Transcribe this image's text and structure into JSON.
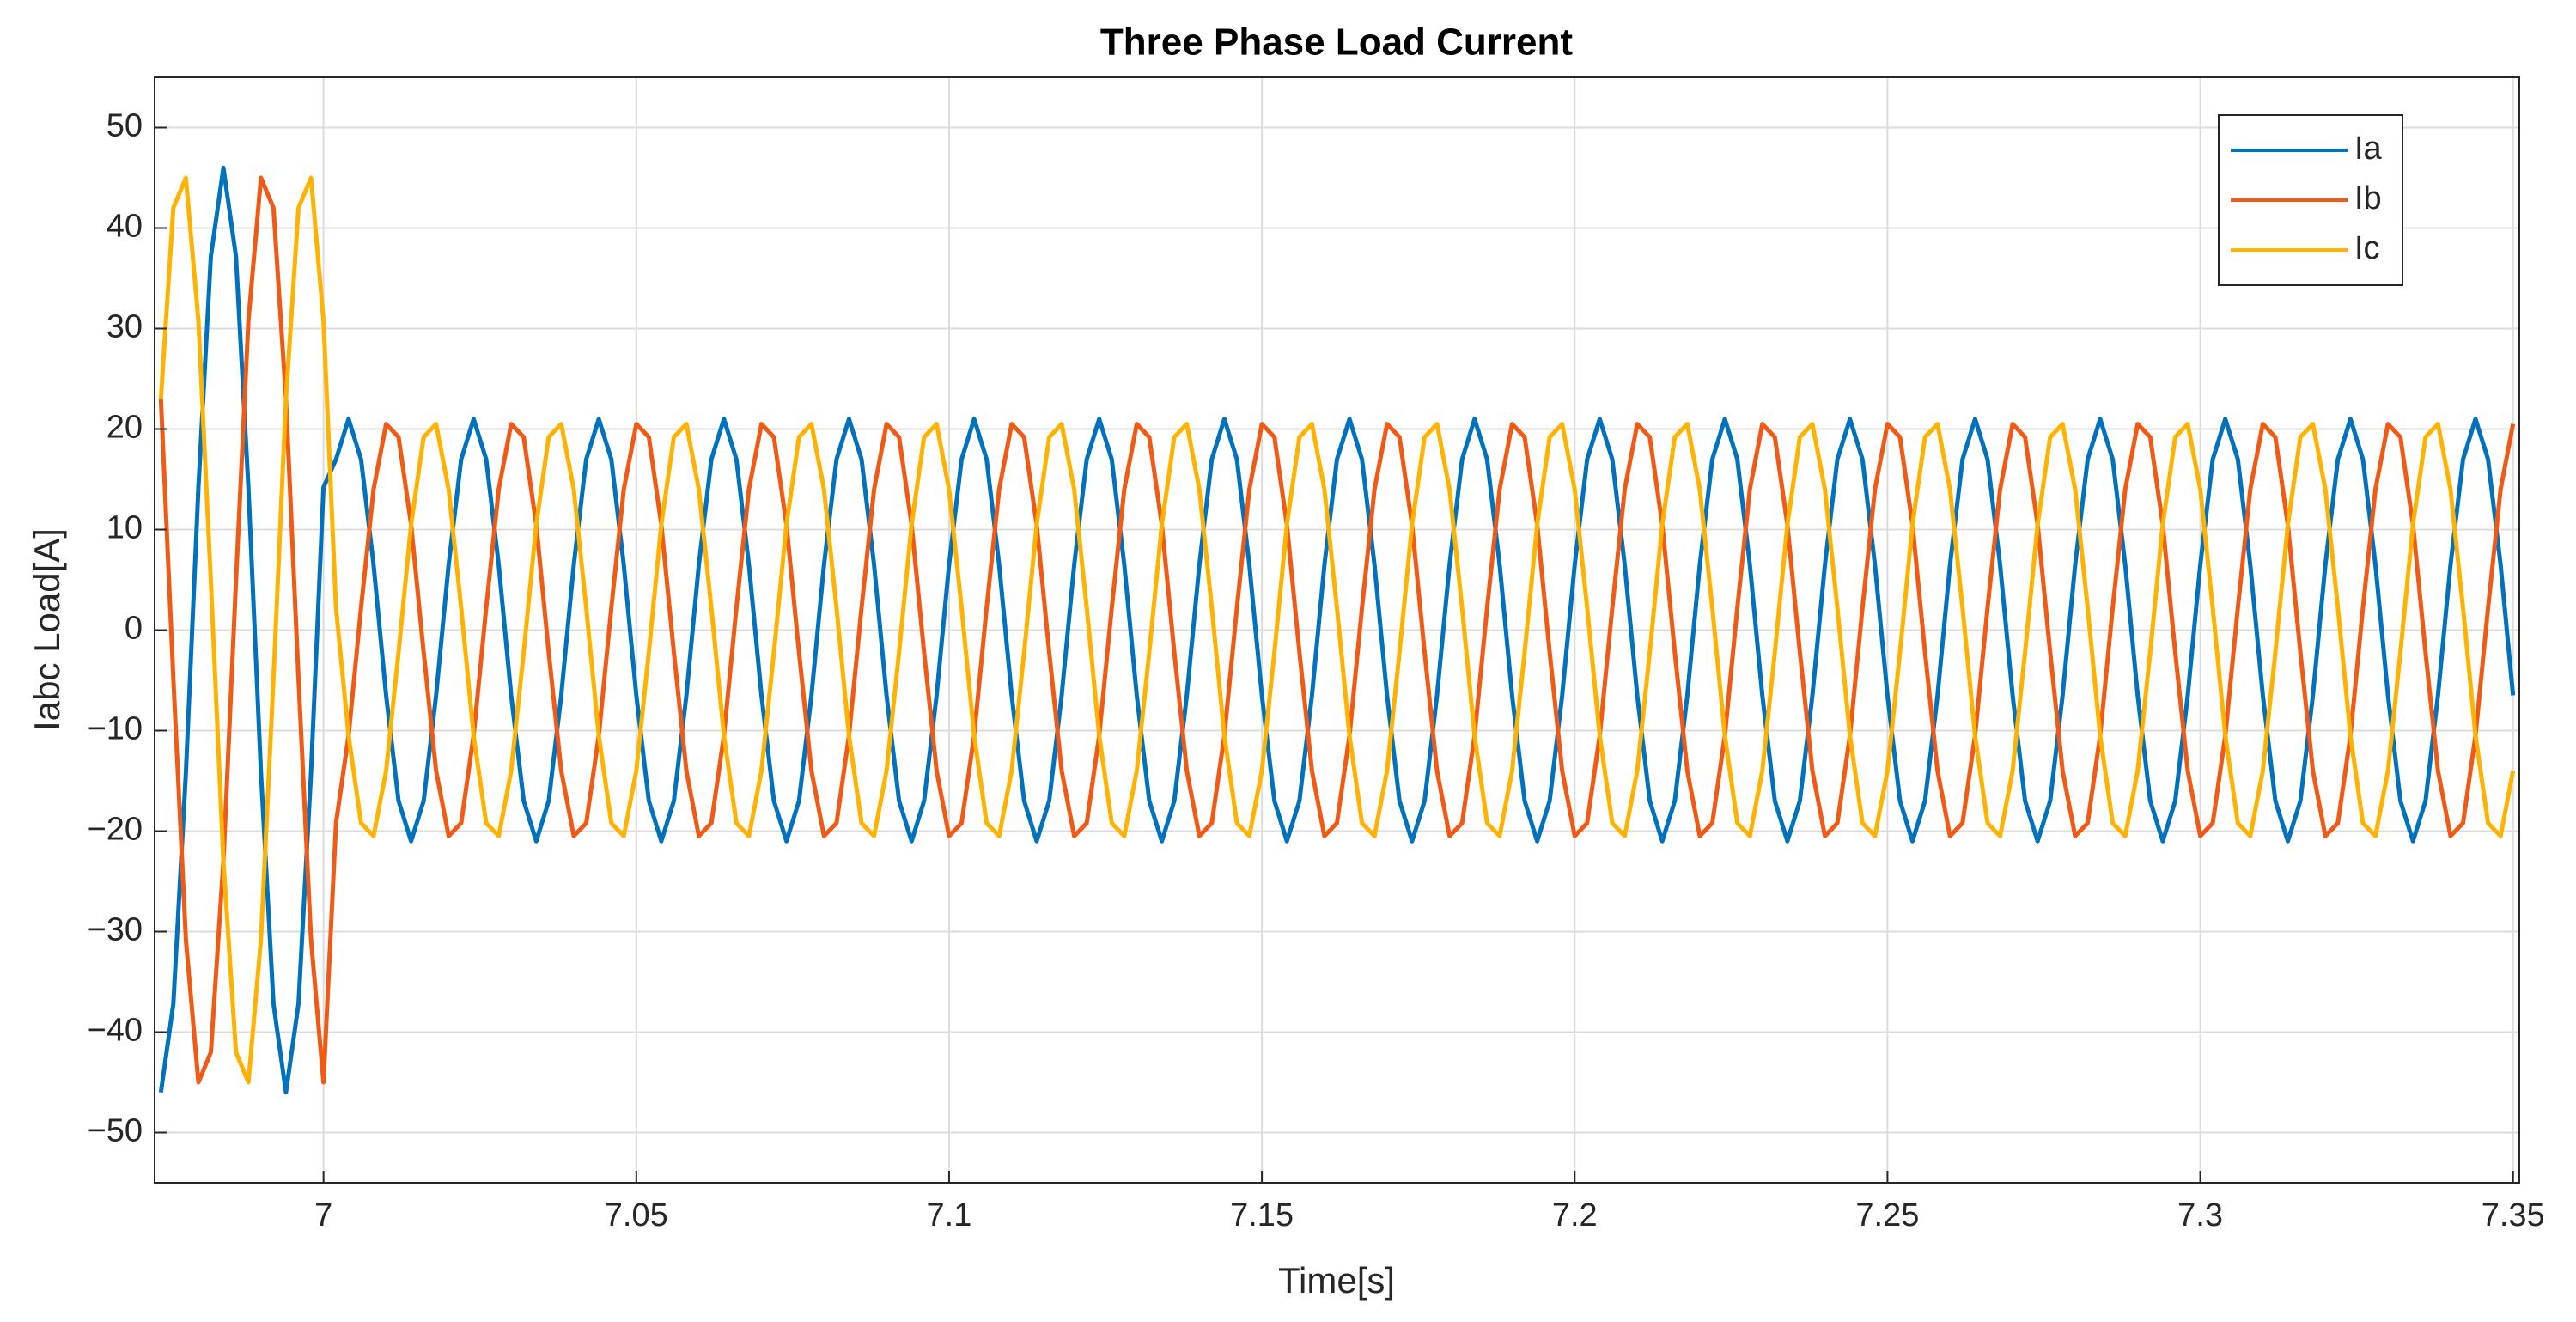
{
  "chart_data": {
    "type": "line",
    "title": "Three Phase Load Current",
    "xlabel": "Time[s]",
    "ylabel": "Iabc Load[A]",
    "x": [
      6.974,
      6.976,
      6.978,
      6.98,
      6.982,
      6.984,
      6.986,
      6.988,
      6.99,
      6.992,
      6.994,
      6.996,
      6.998,
      7,
      7.002,
      7.004,
      7.006,
      7.008,
      7.01,
      7.012,
      7.014,
      7.016,
      7.018,
      7.02,
      7.022,
      7.024,
      7.026,
      7.028,
      7.03,
      7.032,
      7.034,
      7.036,
      7.038,
      7.04,
      7.042,
      7.044,
      7.046,
      7.048,
      7.05,
      7.052,
      7.054,
      7.056,
      7.058,
      7.06,
      7.062,
      7.064,
      7.066,
      7.068,
      7.07,
      7.072,
      7.074,
      7.076,
      7.078,
      7.08,
      7.082,
      7.084,
      7.086,
      7.088,
      7.09,
      7.092,
      7.094,
      7.096,
      7.098,
      7.1,
      7.102,
      7.104,
      7.106,
      7.108,
      7.11,
      7.112,
      7.114,
      7.116,
      7.118,
      7.12,
      7.122,
      7.124,
      7.126,
      7.128,
      7.13,
      7.132,
      7.134,
      7.136,
      7.138,
      7.14,
      7.142,
      7.144,
      7.146,
      7.148,
      7.15,
      7.152,
      7.154,
      7.156,
      7.158,
      7.16,
      7.162,
      7.164,
      7.166,
      7.168,
      7.17,
      7.172,
      7.174,
      7.176,
      7.178,
      7.18,
      7.182,
      7.184,
      7.186,
      7.188,
      7.19,
      7.192,
      7.194,
      7.196,
      7.198,
      7.2,
      7.202,
      7.204,
      7.206,
      7.208,
      7.21,
      7.212,
      7.214,
      7.216,
      7.218,
      7.22,
      7.222,
      7.224,
      7.226,
      7.228,
      7.23,
      7.232,
      7.234,
      7.236,
      7.238,
      7.24,
      7.242,
      7.244,
      7.246,
      7.248,
      7.25,
      7.252,
      7.254,
      7.256,
      7.258,
      7.26,
      7.262,
      7.264,
      7.266,
      7.268,
      7.27,
      7.272,
      7.274,
      7.276,
      7.278,
      7.28,
      7.282,
      7.284,
      7.286,
      7.288,
      7.29,
      7.292,
      7.294,
      7.296,
      7.298,
      7.3,
      7.302,
      7.304,
      7.306,
      7.308,
      7.31,
      7.312,
      7.314,
      7.316,
      7.318,
      7.32,
      7.322,
      7.324,
      7.326,
      7.328,
      7.33,
      7.332,
      7.334,
      7.336,
      7.338,
      7.34,
      7.342,
      7.344,
      7.346,
      7.348,
      7.35
    ],
    "series": [
      {
        "name": "Ia",
        "color": "#0072bd",
        "values": [
          -46,
          -37.2,
          -14.2,
          14.2,
          37.2,
          46,
          37.2,
          14.2,
          -14.2,
          -37.2,
          -46,
          -37.2,
          -14.2,
          14.2,
          17,
          21,
          17,
          6.5,
          -6.5,
          -17,
          -21,
          -17,
          -6.5,
          6.5,
          17,
          21,
          17,
          6.5,
          -6.5,
          -17,
          -21,
          -17,
          -6.5,
          6.5,
          17,
          21,
          17,
          6.5,
          -6.5,
          -17,
          -21,
          -17,
          -6.5,
          6.5,
          17,
          21,
          17,
          6.5,
          -6.5,
          -17,
          -21,
          -17,
          -6.5,
          6.5,
          17,
          21,
          17,
          6.5,
          -6.5,
          -17,
          -21,
          -17,
          -6.5,
          6.5,
          17,
          21,
          17,
          6.5,
          -6.5,
          -17,
          -21,
          -17,
          -6.5,
          6.5,
          17,
          21,
          17,
          6.5,
          -6.5,
          -17,
          -21,
          -17,
          -6.5,
          6.5,
          17,
          21,
          17,
          6.5,
          -6.5,
          -17,
          -21,
          -17,
          -6.5,
          6.5,
          17,
          21,
          17,
          6.5,
          -6.5,
          -17,
          -21,
          -17,
          -6.5,
          6.5,
          17,
          21,
          17,
          6.5,
          -6.5,
          -17,
          -21,
          -17,
          -6.5,
          6.5,
          17,
          21,
          17,
          6.5,
          -6.5,
          -17,
          -21,
          -17,
          -6.5,
          6.5,
          17,
          21,
          17,
          6.5,
          -6.5,
          -17,
          -21,
          -17,
          -6.5,
          6.5,
          17,
          21,
          17,
          6.5,
          -6.5,
          -17,
          -21,
          -17,
          -6.5,
          6.5,
          17,
          21,
          17,
          6.5,
          -6.5,
          -17,
          -21,
          -17,
          -6.5,
          6.5,
          17,
          21,
          17,
          6.5,
          -6.5,
          -17,
          -21,
          -17,
          -6.5,
          6.5,
          17,
          21,
          17,
          6.5,
          -6.5,
          -17,
          -21,
          -17,
          -6.5,
          6.5,
          17,
          21,
          17,
          6.5,
          -6.5,
          -17,
          -21,
          -17,
          -6.5,
          6.5,
          17,
          21,
          17,
          6.5,
          -6.5
        ]
      },
      {
        "name": "Ib",
        "color": "#f05a14",
        "values": [
          23,
          -4.8,
          -30.8,
          -45,
          -42,
          -23,
          4.8,
          30.8,
          45,
          42,
          23,
          -4.8,
          -30.8,
          -45,
          -19.2,
          -10.5,
          2.2,
          14,
          20.5,
          19.2,
          10.5,
          -2.2,
          -14,
          -20.5,
          -19.2,
          -10.5,
          2.2,
          14,
          20.5,
          19.2,
          10.5,
          -2.2,
          -14,
          -20.5,
          -19.2,
          -10.5,
          2.2,
          14,
          20.5,
          19.2,
          10.5,
          -2.2,
          -14,
          -20.5,
          -19.2,
          -10.5,
          2.2,
          14,
          20.5,
          19.2,
          10.5,
          -2.2,
          -14,
          -20.5,
          -19.2,
          -10.5,
          2.2,
          14,
          20.5,
          19.2,
          10.5,
          -2.2,
          -14,
          -20.5,
          -19.2,
          -10.5,
          2.2,
          14,
          20.5,
          19.2,
          10.5,
          -2.2,
          -14,
          -20.5,
          -19.2,
          -10.5,
          2.2,
          14,
          20.5,
          19.2,
          10.5,
          -2.2,
          -14,
          -20.5,
          -19.2,
          -10.5,
          2.2,
          14,
          20.5,
          19.2,
          10.5,
          -2.2,
          -14,
          -20.5,
          -19.2,
          -10.5,
          2.2,
          14,
          20.5,
          19.2,
          10.5,
          -2.2,
          -14,
          -20.5,
          -19.2,
          -10.5,
          2.2,
          14,
          20.5,
          19.2,
          10.5,
          -2.2,
          -14,
          -20.5,
          -19.2,
          -10.5,
          2.2,
          14,
          20.5,
          19.2,
          10.5,
          -2.2,
          -14,
          -20.5,
          -19.2,
          -10.5,
          2.2,
          14,
          20.5,
          19.2,
          10.5,
          -2.2,
          -14,
          -20.5,
          -19.2,
          -10.5,
          2.2,
          14,
          20.5,
          19.2,
          10.5,
          -2.2,
          -14,
          -20.5,
          -19.2,
          -10.5,
          2.2,
          14,
          20.5,
          19.2,
          10.5,
          -2.2,
          -14,
          -20.5,
          -19.2,
          -10.5,
          2.2,
          14,
          20.5,
          19.2,
          10.5,
          -2.2,
          -14,
          -20.5,
          -19.2,
          -10.5,
          2.2,
          14,
          20.5,
          19.2,
          10.5,
          -2.2,
          -14,
          -20.5,
          -19.2,
          -10.5,
          2.2,
          14,
          20.5,
          19.2,
          10.5,
          -2.2,
          -14,
          -20.5,
          -19.2,
          -10.5,
          2.2,
          14,
          20.5
        ]
      },
      {
        "name": "Ic",
        "color": "#ffb300",
        "values": [
          23,
          42,
          45,
          30.8,
          4.8,
          -23,
          -42,
          -45,
          -30.8,
          -4.8,
          23,
          42,
          45,
          30.8,
          2.2,
          -10.5,
          -19.2,
          -20.5,
          -14,
          -2.2,
          10.5,
          19.2,
          20.5,
          14,
          2.2,
          -10.5,
          -19.2,
          -20.5,
          -14,
          -2.2,
          10.5,
          19.2,
          20.5,
          14,
          2.2,
          -10.5,
          -19.2,
          -20.5,
          -14,
          -2.2,
          10.5,
          19.2,
          20.5,
          14,
          2.2,
          -10.5,
          -19.2,
          -20.5,
          -14,
          -2.2,
          10.5,
          19.2,
          20.5,
          14,
          2.2,
          -10.5,
          -19.2,
          -20.5,
          -14,
          -2.2,
          10.5,
          19.2,
          20.5,
          14,
          2.2,
          -10.5,
          -19.2,
          -20.5,
          -14,
          -2.2,
          10.5,
          19.2,
          20.5,
          14,
          2.2,
          -10.5,
          -19.2,
          -20.5,
          -14,
          -2.2,
          10.5,
          19.2,
          20.5,
          14,
          2.2,
          -10.5,
          -19.2,
          -20.5,
          -14,
          -2.2,
          10.5,
          19.2,
          20.5,
          14,
          2.2,
          -10.5,
          -19.2,
          -20.5,
          -14,
          -2.2,
          10.5,
          19.2,
          20.5,
          14,
          2.2,
          -10.5,
          -19.2,
          -20.5,
          -14,
          -2.2,
          10.5,
          19.2,
          20.5,
          14,
          2.2,
          -10.5,
          -19.2,
          -20.5,
          -14,
          -2.2,
          10.5,
          19.2,
          20.5,
          14,
          2.2,
          -10.5,
          -19.2,
          -20.5,
          -14,
          -2.2,
          10.5,
          19.2,
          20.5,
          14,
          2.2,
          -10.5,
          -19.2,
          -20.5,
          -14,
          -2.2,
          10.5,
          19.2,
          20.5,
          14,
          2.2,
          -10.5,
          -19.2,
          -20.5,
          -14,
          -2.2,
          10.5,
          19.2,
          20.5,
          14,
          2.2,
          -10.5,
          -19.2,
          -20.5,
          -14,
          -2.2,
          10.5,
          19.2,
          20.5,
          14,
          2.2,
          -10.5,
          -19.2,
          -20.5,
          -14,
          -2.2,
          10.5,
          19.2,
          20.5,
          14,
          2.2,
          -10.5,
          -19.2,
          -20.5,
          -14,
          -2.2,
          10.5,
          19.2,
          20.5,
          14,
          2.2,
          -10.5,
          -19.2,
          -20.5,
          -14
        ]
      }
    ],
    "xlim": [
      6.973,
      7.351
    ],
    "ylim": [
      -55,
      55
    ],
    "xticks": [
      7,
      7.05,
      7.1,
      7.15,
      7.2,
      7.25,
      7.3,
      7.35
    ],
    "yticks": [
      {
        "value": -50,
        "label": "−50"
      },
      {
        "value": -40,
        "label": "−40"
      },
      {
        "value": -30,
        "label": "−30"
      },
      {
        "value": -20,
        "label": "−20"
      },
      {
        "value": -10,
        "label": "−10"
      },
      0,
      10,
      20,
      30,
      40,
      50
    ],
    "grid": true,
    "legend": "upper right"
  }
}
